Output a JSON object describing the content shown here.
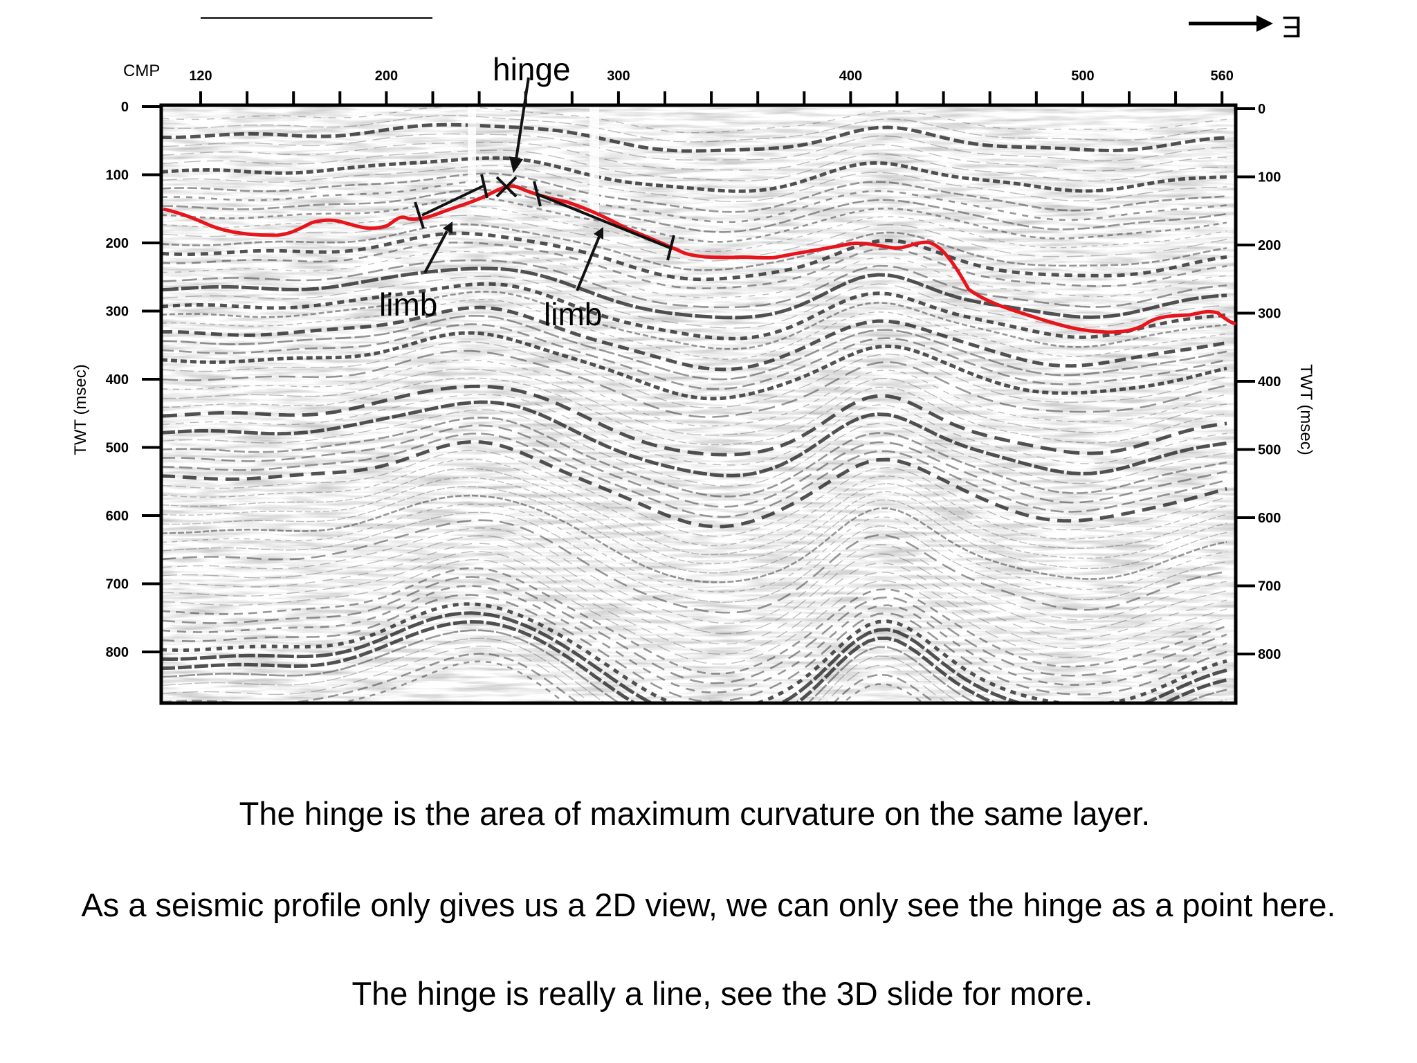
{
  "figure": {
    "direction_label": "E",
    "cmp_label": "CMP",
    "cmp_ticks": [
      "120",
      "200",
      "300",
      "400",
      "500",
      "560"
    ],
    "twt_ticks": [
      "0",
      "100",
      "200",
      "300",
      "400",
      "500",
      "600",
      "700",
      "800"
    ],
    "left_axis_label": "TWT (msec)",
    "right_axis_label": "TWT (msec)",
    "annotations": {
      "hinge": "hinge",
      "limb_left": "limb",
      "limb_right": "limb"
    },
    "colors": {
      "horizon": "#e8141c",
      "ink": "#111111",
      "frame": "#000000"
    }
  },
  "captions": [
    "The hinge is the area of maximum curvature on the same layer.",
    "As a seismic profile only gives us a 2D view, we can only see the hinge as a point here.",
    "The hinge is really a line, see the 3D slide for more."
  ]
}
